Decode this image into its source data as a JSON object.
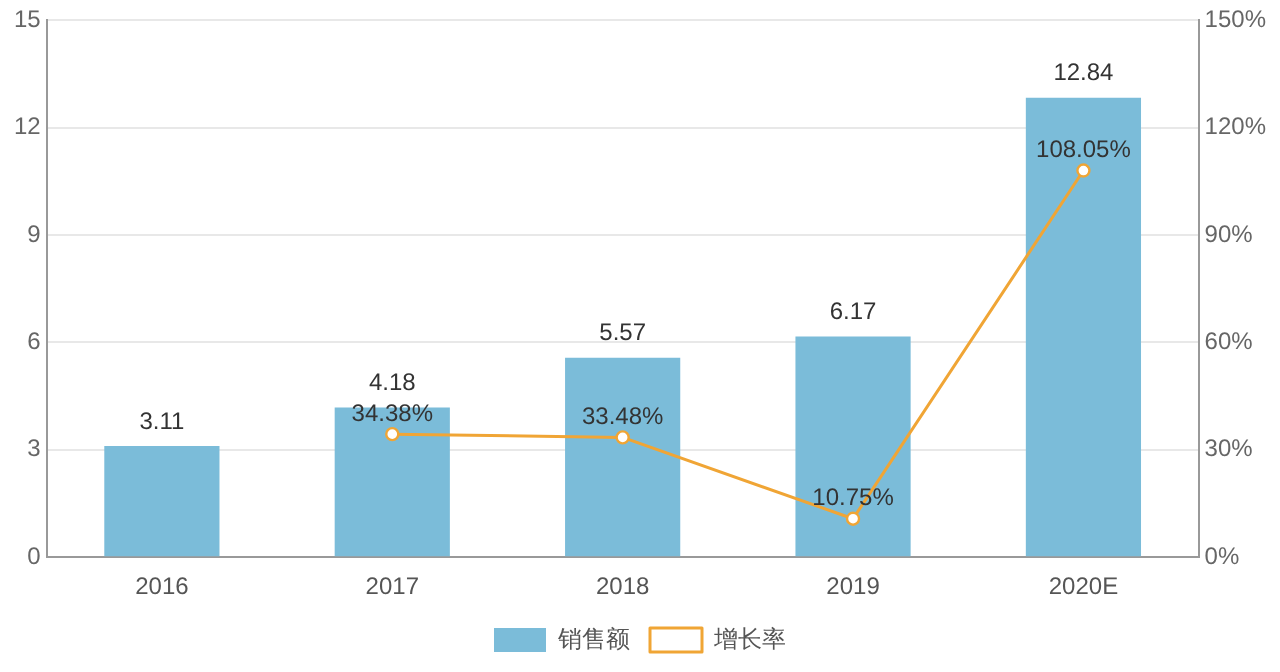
{
  "chart_data": {
    "type": "bar",
    "categories": [
      "2016",
      "2017",
      "2018",
      "2019",
      "2020E"
    ],
    "series": [
      {
        "name": "销售额",
        "color": "#7bbcd9",
        "values": [
          3.11,
          4.18,
          5.57,
          6.17,
          12.84
        ],
        "value_labels": [
          "3.11",
          "4.18",
          "5.57",
          "6.17",
          "12.84"
        ]
      },
      {
        "name": "增长率",
        "type": "line",
        "axis": "y2",
        "color": "#f0a535",
        "marker": "circle",
        "values": [
          null,
          34.38,
          33.48,
          10.75,
          108.05
        ],
        "value_labels": [
          null,
          "34.38%",
          "33.48%",
          "10.75%",
          "108.05%"
        ]
      }
    ],
    "ylim": [
      0,
      15
    ],
    "yticks": [
      0,
      3,
      6,
      9,
      12,
      15
    ],
    "y2lim": [
      0,
      150
    ],
    "y2ticks": [
      {
        "value": 0,
        "label": "0%"
      },
      {
        "value": 30,
        "label": "30%"
      },
      {
        "value": 60,
        "label": "60%"
      },
      {
        "value": 90,
        "label": "90%"
      },
      {
        "value": 120,
        "label": "120%"
      },
      {
        "value": 150,
        "label": "150%"
      }
    ],
    "grid": "y",
    "legend": "bottom"
  }
}
